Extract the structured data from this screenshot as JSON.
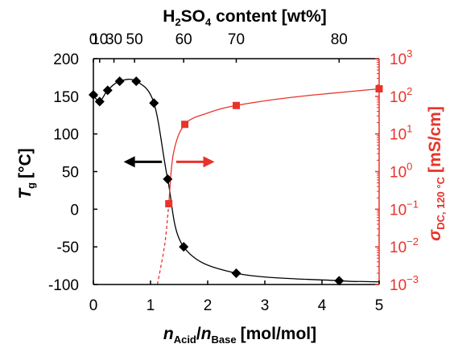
{
  "colors": {
    "black": "#000000",
    "red": "#e8332a"
  },
  "chart_data": {
    "type": "scatter",
    "title": "",
    "xlabel": {
      "var": "n",
      "sub_acid": "Acid",
      "slash": "/",
      "sub_base": "Base",
      "unit": "[mol/mol]"
    },
    "ylabel_left": {
      "var": "T",
      "sub": "g",
      "unit": "[°C]"
    },
    "ylabel_right": {
      "var": "σ",
      "sub": "DC, 120 °C",
      "unit": "[mS/cm]"
    },
    "xlabel_top": {
      "before": "H",
      "sub1": "2",
      "mid": "SO",
      "sub2": "4",
      "after": " content [wt%]"
    },
    "xlim": [
      0,
      5
    ],
    "ylim_left": [
      -100,
      200
    ],
    "ylim_right_log10": [
      -3,
      3
    ],
    "x_ticks": [
      0,
      1,
      2,
      3,
      4,
      5
    ],
    "x_tick_labels": [
      "0",
      "1",
      "2",
      "3",
      "4",
      "5"
    ],
    "y_left_ticks": [
      200,
      150,
      100,
      50,
      0,
      -50,
      -100
    ],
    "y_left_tick_labels": [
      "200",
      "150",
      "100",
      "50",
      "0",
      "-50",
      "-100"
    ],
    "y_right_ticks_exp": [
      3,
      2,
      1,
      0,
      -1,
      -2,
      -3
    ],
    "y_right_tick_base": "10",
    "y_right_tick_exps": [
      "3",
      "2",
      "1",
      "0",
      "−1",
      "−2",
      "−3"
    ],
    "top_ticks": [
      {
        "x": 0.0,
        "label": "0"
      },
      {
        "x": 0.11,
        "label": "10"
      },
      {
        "x": 0.36,
        "label": "30"
      },
      {
        "x": 0.72,
        "label": "50"
      },
      {
        "x": 1.58,
        "label": "60"
      },
      {
        "x": 2.5,
        "label": "70"
      },
      {
        "x": 4.3,
        "label": "80"
      }
    ],
    "series": [
      {
        "axis": "left",
        "marker": "diamond",
        "color": "#000000",
        "points": [
          {
            "x": 0.0,
            "y": 152
          },
          {
            "x": 0.11,
            "y": 143
          },
          {
            "x": 0.25,
            "y": 158
          },
          {
            "x": 0.46,
            "y": 170
          },
          {
            "x": 0.75,
            "y": 170
          },
          {
            "x": 1.06,
            "y": 141
          },
          {
            "x": 1.3,
            "y": 40
          },
          {
            "x": 1.58,
            "y": -50
          },
          {
            "x": 2.5,
            "y": -85
          },
          {
            "x": 4.3,
            "y": -95
          }
        ]
      },
      {
        "axis": "right",
        "marker": "square",
        "color": "#e8332a",
        "points": [
          {
            "x": 1.32,
            "y": 0.14
          },
          {
            "x": 1.6,
            "y": 18
          },
          {
            "x": 2.5,
            "y": 57
          },
          {
            "x": 5.0,
            "y": 158
          }
        ]
      }
    ],
    "arrows": [
      {
        "direction": "left",
        "color": "#000000",
        "x_from": 1.2,
        "x_to": 0.53,
        "y_left": 63
      },
      {
        "direction": "right",
        "color": "#e8332a",
        "x_from": 1.45,
        "x_to": 2.12,
        "y_left": 63
      }
    ]
  }
}
